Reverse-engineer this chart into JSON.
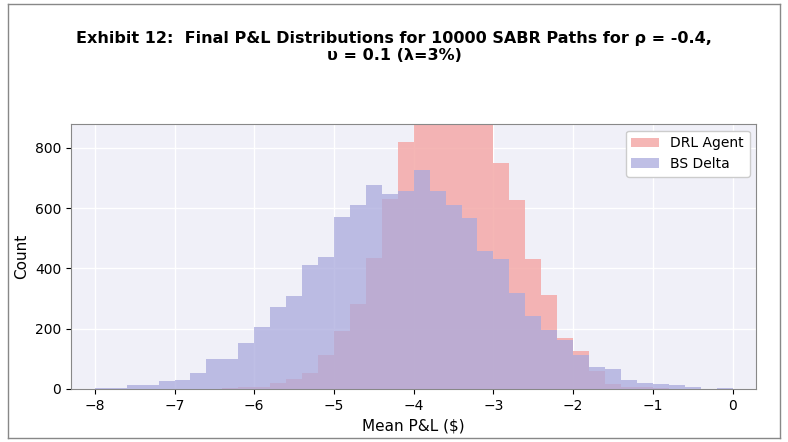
{
  "title_line1": "Exhibit 12:  Final P&L Distributions for 10000 SABR Paths for ρ = -0.4,",
  "title_line2": "υ = 0.1 (λ=3%)",
  "xlabel": "Mean P&L ($)",
  "ylabel": "Count",
  "xlim": [
    -8.3,
    0.3
  ],
  "ylim": [
    0,
    880
  ],
  "xticks": [
    -8,
    -7,
    -6,
    -5,
    -4,
    -3,
    -2,
    -1,
    0
  ],
  "yticks": [
    0,
    200,
    400,
    600,
    800
  ],
  "drl_color": "#F4A9A8",
  "bs_color": "#AAAADD",
  "drl_alpha": 0.85,
  "bs_alpha": 0.75,
  "drl_label": "DRL Agent",
  "bs_label": "BS Delta",
  "background_color": "#f0f0f8",
  "grid_color": "white",
  "drl_mean": -3.5,
  "drl_std": 0.75,
  "bs_mean": -4.1,
  "bs_std": 1.15,
  "n_samples": 10000,
  "bin_width": 0.2,
  "bin_start": -8.0,
  "bin_end": 0.0
}
